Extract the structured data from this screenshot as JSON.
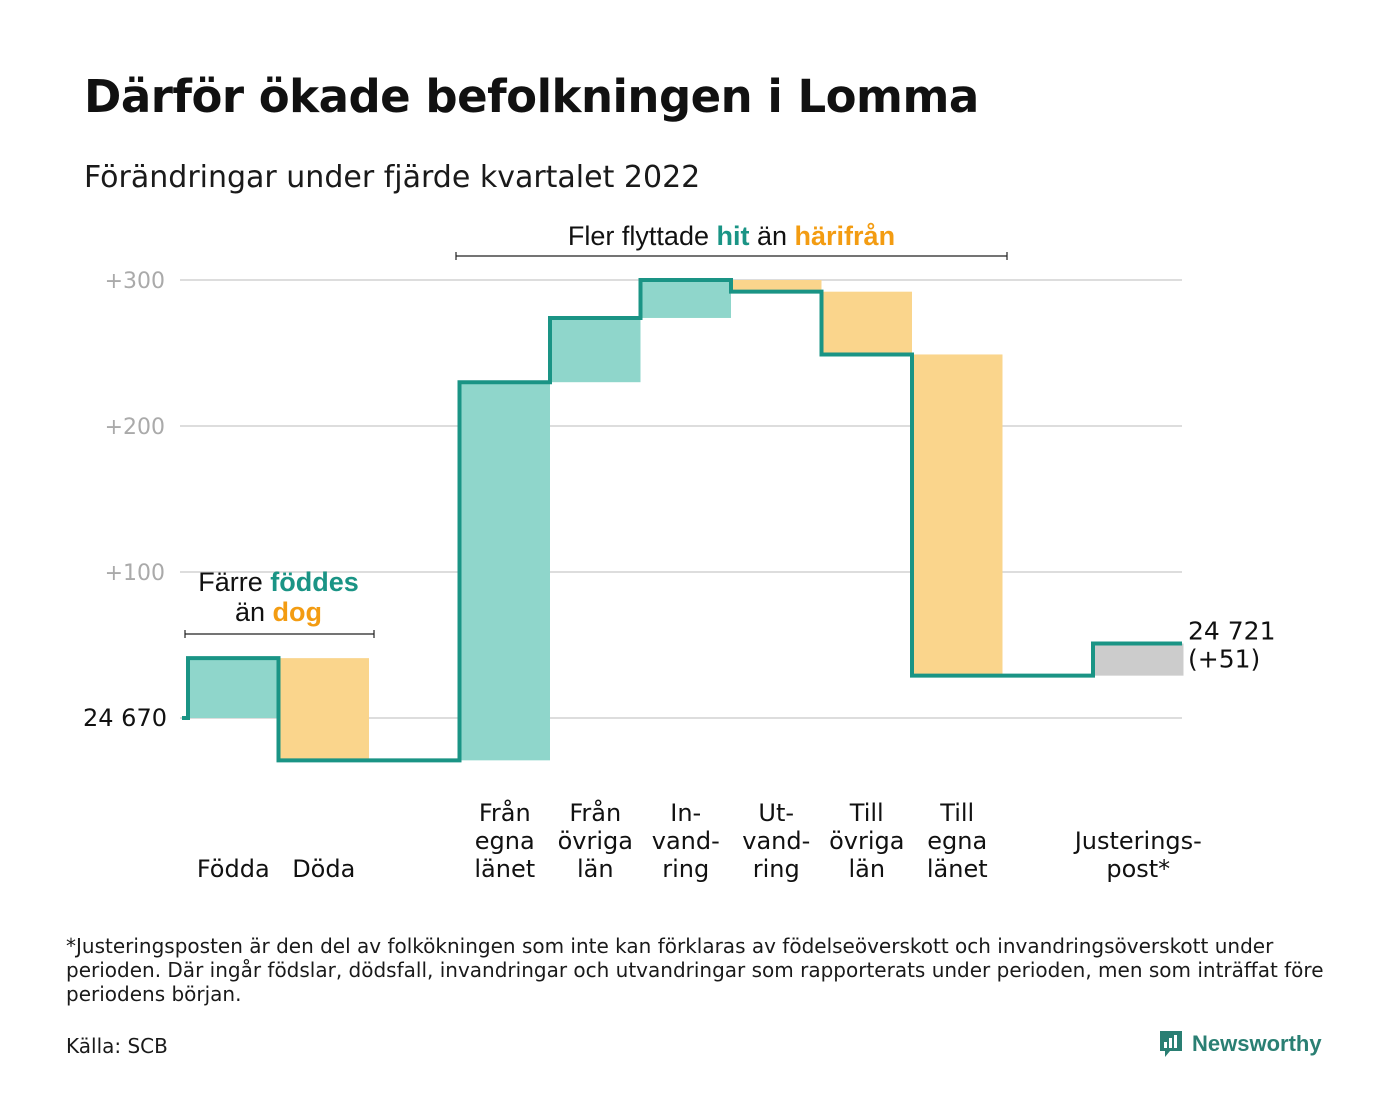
{
  "header": {
    "title": "Därför ökade befolkningen i Lomma",
    "subtitle": "Förändringar under fjärde kvartalet 2022"
  },
  "colors": {
    "hit": "#1a9485",
    "hit_fill": "#8fd6cb",
    "harifran": "#f39c12",
    "harifran_fill": "#fad58c",
    "adjust_fill": "#cccccc",
    "grid": "#dddddd",
    "tick": "#aaaaaa"
  },
  "chart_data": {
    "type": "waterfall",
    "start_value": 24670,
    "start_label": "24 670",
    "end_label": "24 721",
    "end_change_label": "(+51)",
    "y_ticks": [
      {
        "value": 100,
        "label": "+100"
      },
      {
        "value": 200,
        "label": "+200"
      },
      {
        "value": 300,
        "label": "+300"
      }
    ],
    "ylim": [
      -40,
      300
    ],
    "grid": true,
    "steps": [
      {
        "label_lines": [
          "Födda"
        ],
        "change": 41,
        "kind": "in"
      },
      {
        "label_lines": [
          "Döda"
        ],
        "change": -70,
        "kind": "out"
      },
      {
        "label_lines": [],
        "change": 0,
        "kind": "gap"
      },
      {
        "label_lines": [
          "Från",
          "egna",
          "länet"
        ],
        "change": 259,
        "kind": "in"
      },
      {
        "label_lines": [
          "Från",
          "övriga",
          "län"
        ],
        "change": 44,
        "kind": "in"
      },
      {
        "label_lines": [
          "In-",
          "vand-",
          "ring"
        ],
        "change": 26,
        "kind": "in"
      },
      {
        "label_lines": [
          "Ut-",
          "vand-",
          "ring"
        ],
        "change": -8,
        "kind": "out"
      },
      {
        "label_lines": [
          "Till",
          "övriga",
          "län"
        ],
        "change": -43,
        "kind": "out"
      },
      {
        "label_lines": [
          "Till",
          "egna",
          "länet"
        ],
        "change": -220,
        "kind": "out"
      },
      {
        "label_lines": [],
        "change": 0,
        "kind": "gap"
      },
      {
        "label_lines": [
          "Justerings-",
          "post*"
        ],
        "change": 22,
        "kind": "adjust"
      }
    ],
    "annotations": [
      {
        "id": "births",
        "parts": [
          {
            "text": "Färre ",
            "style": "plain"
          },
          {
            "text": "föddes",
            "style": "hit"
          },
          {
            "text": "\n",
            "style": "break"
          },
          {
            "text": "än ",
            "style": "plain"
          },
          {
            "text": "dog",
            "style": "harifran"
          }
        ]
      },
      {
        "id": "moves",
        "parts": [
          {
            "text": "Fler flyttade ",
            "style": "plain"
          },
          {
            "text": "hit",
            "style": "hit"
          },
          {
            "text": " än ",
            "style": "plain"
          },
          {
            "text": "härifrån",
            "style": "harifran"
          }
        ]
      }
    ]
  },
  "footer": {
    "footnote": "*Justeringsposten är den del av folkökningen som inte kan förklaras av födelseöverskott och invandringsöverskott under perioden. Där ingår födslar, dödsfall, invandringar och utvandringar som rapporterats under perioden, men som inträffat före periodens början.",
    "source": "Källa: SCB",
    "brand": "Newsworthy"
  }
}
